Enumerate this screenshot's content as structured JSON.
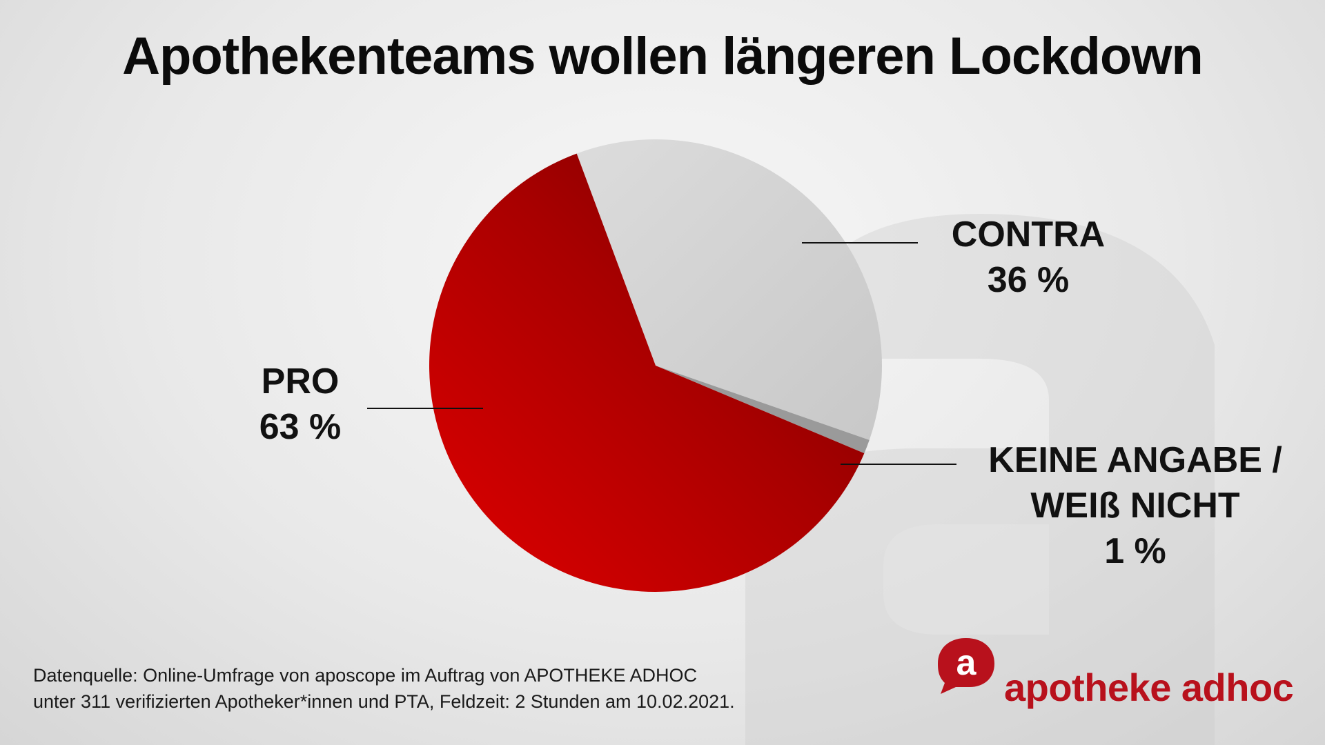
{
  "chart_data": {
    "type": "pie",
    "title": "Apothekenteams wollen längeren Lockdown",
    "slices": [
      {
        "label": "PRO",
        "value": 63,
        "display": "63 %",
        "color": "#c40000"
      },
      {
        "label": "CONTRA",
        "value": 36,
        "display": "36 %",
        "color": "#cfcfcf"
      },
      {
        "label": "KEINE ANGABE / WEIß NICHT",
        "line1": "KEINE ANGABE /",
        "line2": "WEIß NICHT",
        "value": 1,
        "display": "1 %",
        "color": "#9a9a9a"
      }
    ],
    "legend": "none"
  },
  "source": {
    "line1": "Datenquelle: Online-Umfrage von aposcope im Auftrag von APOTHEKE ADHOC",
    "line2": "unter 311 verifizierten Apotheker*innen und PTA, Feldzeit: 2 Stunden am 10.02.2021."
  },
  "logo": {
    "mark": "a",
    "text": "apotheke adhoc",
    "color": "#b8111c"
  }
}
